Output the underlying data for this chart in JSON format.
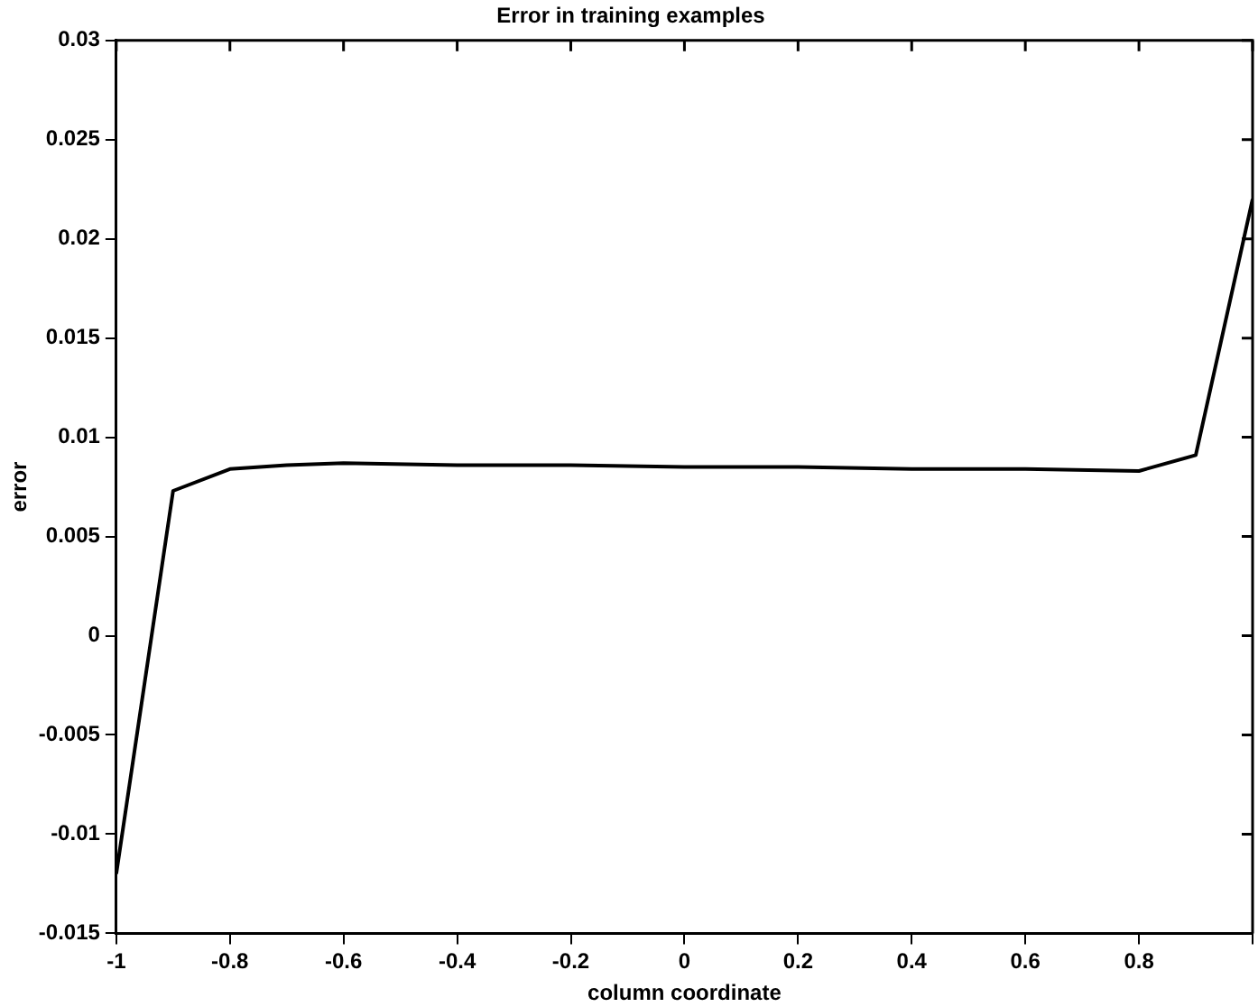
{
  "chart_data": {
    "type": "line",
    "title": "Error in training examples",
    "xlabel": "column coordinate",
    "ylabel": "error",
    "x": [
      -1,
      -0.9,
      -0.8,
      -0.7,
      -0.6,
      -0.4,
      -0.2,
      0,
      0.2,
      0.4,
      0.6,
      0.8,
      0.9,
      1
    ],
    "series": [
      {
        "color": "#000000",
        "values": [
          -0.012,
          0.0073,
          0.0084,
          0.0086,
          0.0087,
          0.0086,
          0.0086,
          0.0085,
          0.0085,
          0.0084,
          0.0084,
          0.0083,
          0.0091,
          0.022
        ]
      }
    ],
    "xlim": [
      -1,
      1
    ],
    "xticks": [
      -1,
      -0.8,
      -0.6,
      -0.4,
      -0.2,
      0,
      0.2,
      0.4,
      0.6,
      0.8,
      {
        "value": 1,
        "label": null
      }
    ],
    "ylim": [
      -0.015,
      0.03
    ],
    "yticks": [
      -0.015,
      -0.01,
      -0.005,
      0,
      0.005,
      0.01,
      0.015,
      0.02,
      0.025,
      0.03
    ],
    "grid": false,
    "legend": false,
    "marker": "none",
    "line_style": "solid"
  }
}
